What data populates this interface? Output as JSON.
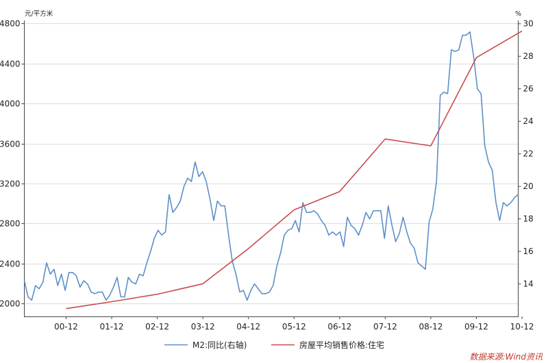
{
  "chart_data": {
    "type": "line",
    "left_axis": {
      "unit": "元/平方米",
      "ticks": [
        2000,
        2400,
        2800,
        3200,
        3600,
        4000,
        4400,
        4800
      ],
      "range": [
        1870,
        4830
      ]
    },
    "right_axis": {
      "unit": "%",
      "ticks": [
        14,
        16,
        18,
        20,
        22,
        24,
        26,
        28,
        30
      ],
      "range": [
        12.0,
        30.2
      ]
    },
    "x_axis": {
      "ticks": [
        "00-12",
        "01-12",
        "02-12",
        "03-12",
        "04-12",
        "05-12",
        "06-12",
        "07-12",
        "08-12",
        "09-12",
        "10-12"
      ]
    },
    "grid": true,
    "legend_position": "bottom",
    "series": [
      {
        "name": "M2:同比(右轴)",
        "axis": "right",
        "color": "#5b8fc9",
        "x_start": "2000-01",
        "x_step": "month",
        "values": [
          14.2,
          13.2,
          13.0,
          13.9,
          13.7,
          14.1,
          15.3,
          14.6,
          14.9,
          13.9,
          14.6,
          13.6,
          14.7,
          14.7,
          14.5,
          13.8,
          14.2,
          14.0,
          13.5,
          13.4,
          13.5,
          13.5,
          13.0,
          13.3,
          13.8,
          14.4,
          13.2,
          13.2,
          14.4,
          14.1,
          14.0,
          14.6,
          14.5,
          15.3,
          16.0,
          16.8,
          17.3,
          17.0,
          17.2,
          19.5,
          18.4,
          18.7,
          19.1,
          20.0,
          20.5,
          20.3,
          21.5,
          20.6,
          20.9,
          20.3,
          19.2,
          17.9,
          19.1,
          18.8,
          18.8,
          17.0,
          15.4,
          14.6,
          13.5,
          13.6,
          13.0,
          13.6,
          14.0,
          13.7,
          13.4,
          13.4,
          13.5,
          13.9,
          15.1,
          15.9,
          17.0,
          17.3,
          17.4,
          17.9,
          17.2,
          19.0,
          18.4,
          18.4,
          18.5,
          18.3,
          17.9,
          17.6,
          17.0,
          17.2,
          17.0,
          17.2,
          16.3,
          18.1,
          17.6,
          17.4,
          17.0,
          17.6,
          18.4,
          18.0,
          18.5,
          18.5,
          18.5,
          16.8,
          18.8,
          17.6,
          16.6,
          17.1,
          18.1,
          17.2,
          16.5,
          16.2,
          15.3,
          15.1,
          14.9,
          17.8,
          18.6,
          20.3,
          25.6,
          25.8,
          25.7,
          28.4,
          28.3,
          28.4,
          29.3,
          29.3,
          29.5,
          28.0,
          26.0,
          25.7,
          22.5,
          21.5,
          21.0,
          19.0,
          17.9,
          19.0,
          18.8,
          19.0,
          19.3,
          19.5
        ]
      },
      {
        "name": "房屋平均销售价格:住宅",
        "axis": "left",
        "color": "#c84b4b",
        "x": [
          "2000-12",
          "2001-12",
          "2002-12",
          "2003-12",
          "2004-12",
          "2005-12",
          "2006-12",
          "2007-12",
          "2008-12",
          "2009-12",
          "2010-12"
        ],
        "values": [
          1948,
          2017,
          2092,
          2197,
          2549,
          2936,
          3119,
          3645,
          3576,
          4459,
          4725
        ]
      }
    ]
  },
  "source_note": "数据来源:Wind资讯"
}
